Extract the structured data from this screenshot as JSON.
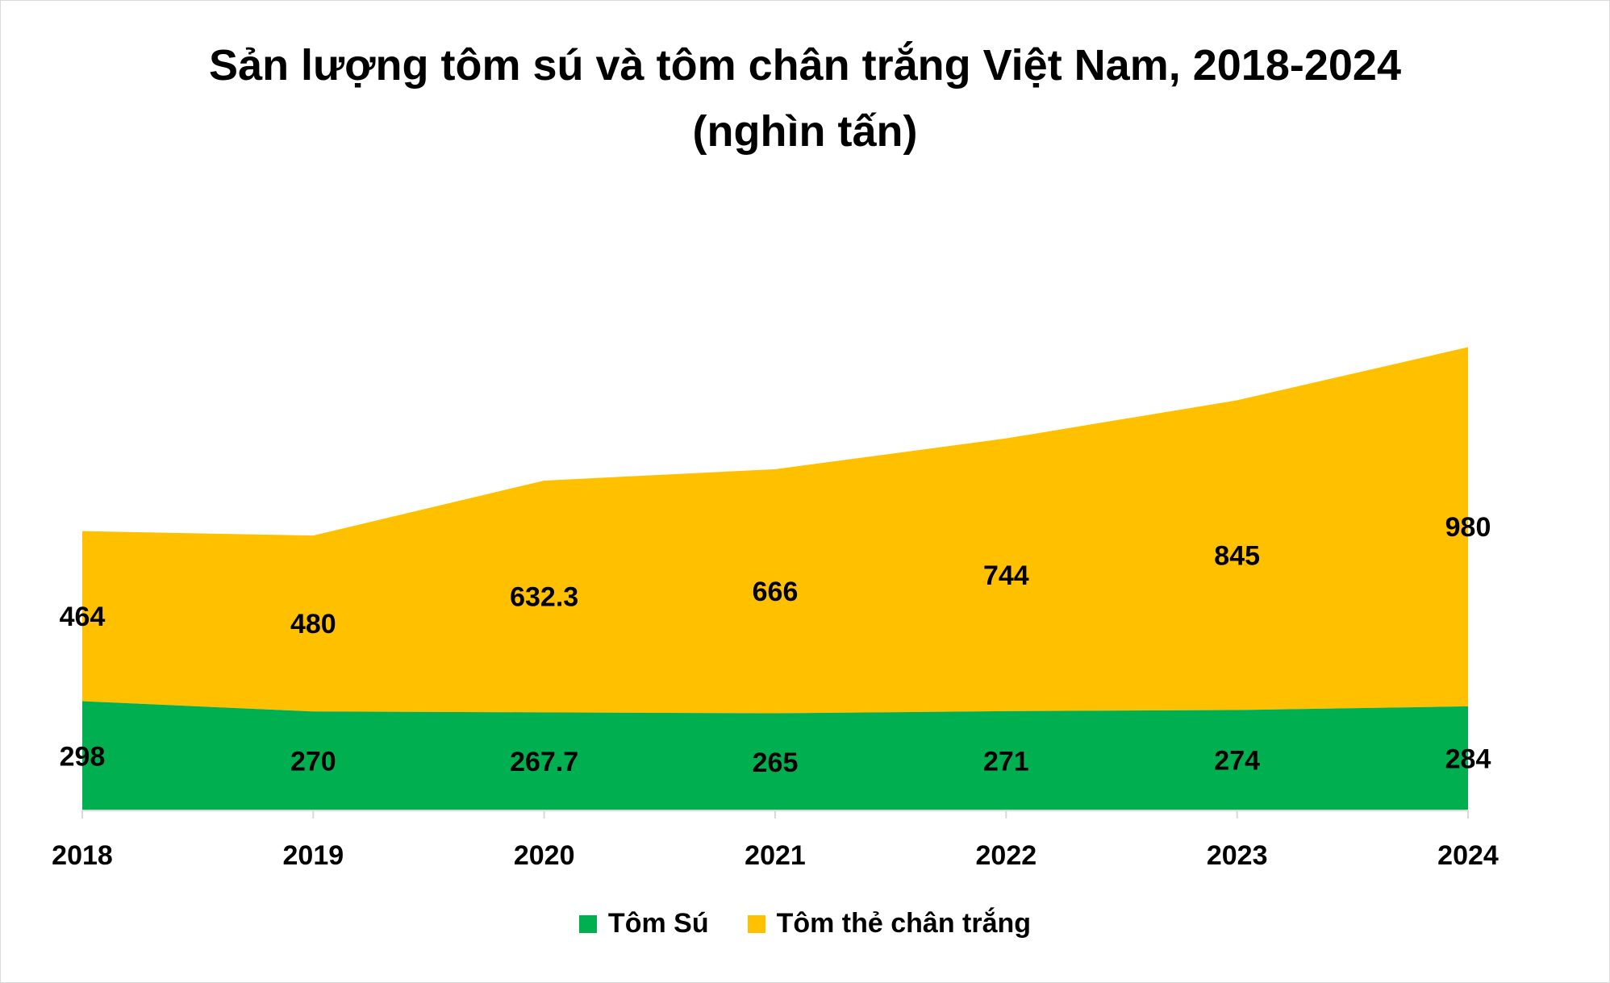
{
  "chart_data": {
    "type": "area",
    "stacked": true,
    "title_line1": "Sản lượng tôm sú và tôm chân trắng Việt Nam, 2018-2024",
    "title_line2": "(nghìn tấn)",
    "categories": [
      "2018",
      "2019",
      "2020",
      "2021",
      "2022",
      "2023",
      "2024"
    ],
    "series": [
      {
        "name": "Tôm Sú",
        "color": "#00B050",
        "values": [
          298,
          270,
          267.7,
          265,
          271,
          274,
          284
        ],
        "labels": [
          "298",
          "270",
          "267.7",
          "265",
          "271",
          "274",
          "284"
        ]
      },
      {
        "name": "Tôm thẻ chân trắng",
        "color": "#FFC000",
        "values": [
          464,
          480,
          632.3,
          666,
          744,
          845,
          980
        ],
        "labels": [
          "464",
          "480",
          "632.3",
          "666",
          "744",
          "845",
          "980"
        ]
      }
    ],
    "ylim": [
      0,
      1300
    ],
    "grid": false,
    "legend_position": "bottom"
  }
}
